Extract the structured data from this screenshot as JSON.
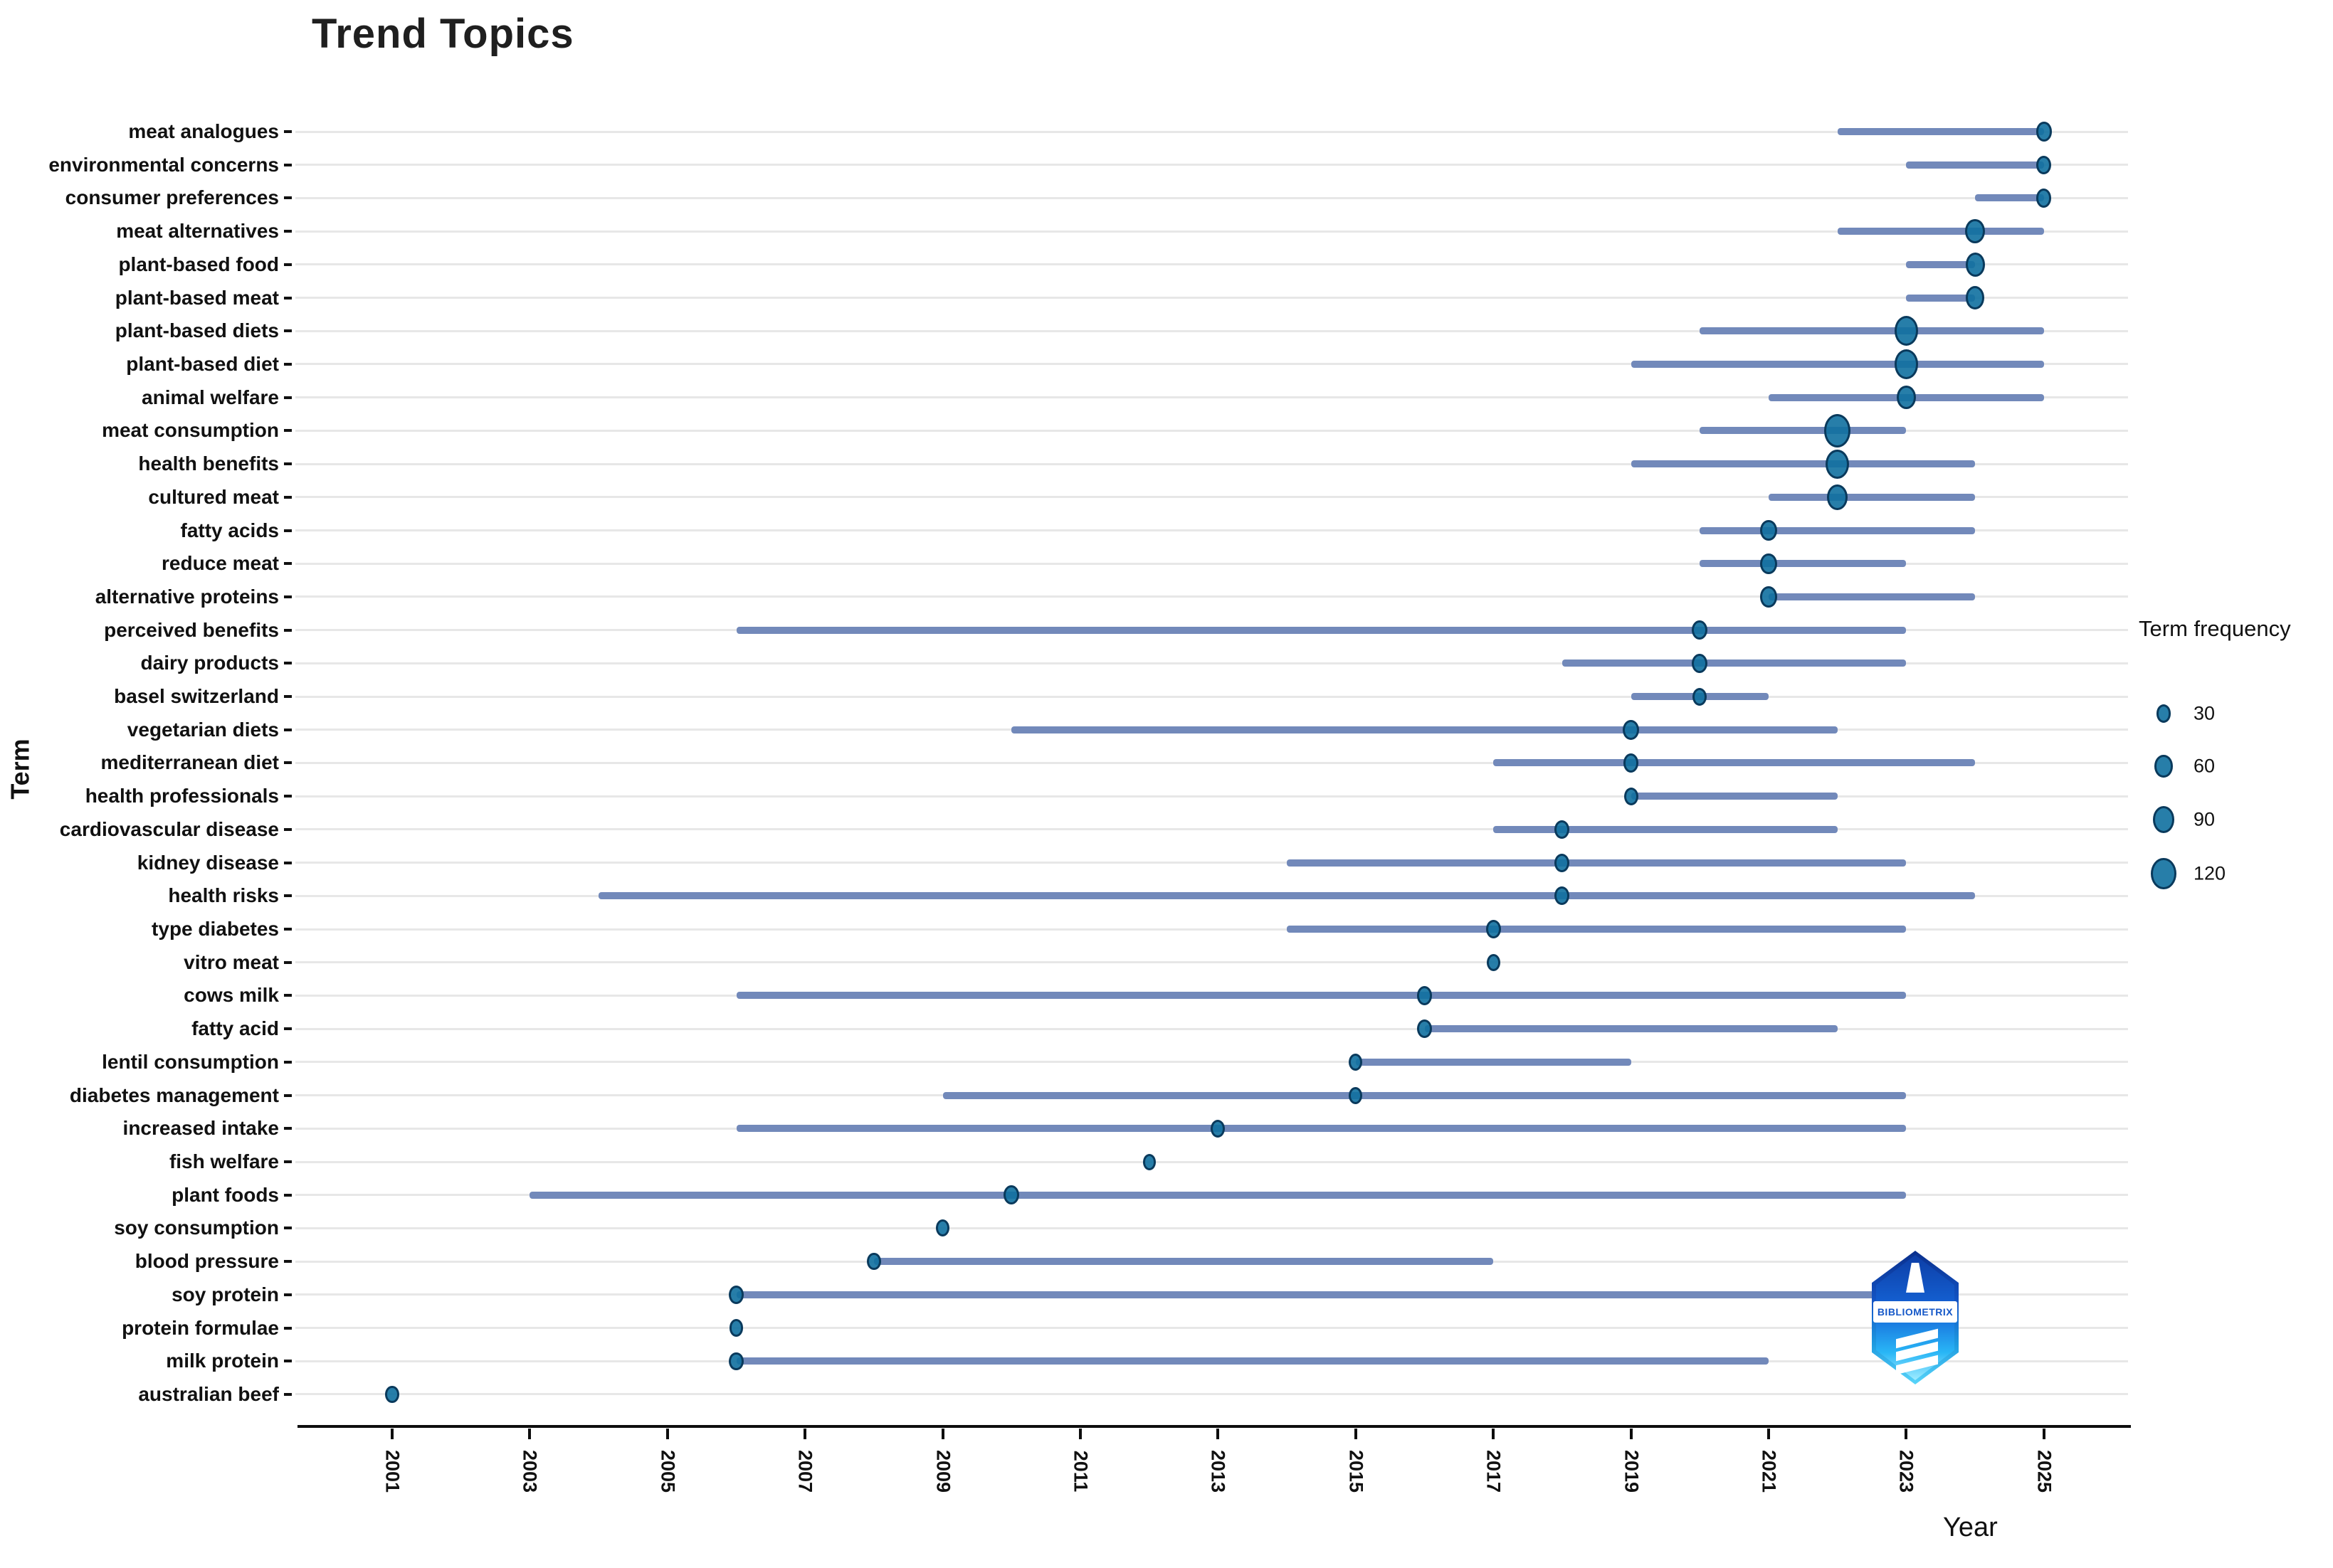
{
  "title": "Trend Topics",
  "x_axis": {
    "label": "Year",
    "min": 2001,
    "max": 2025,
    "ticks": [
      2001,
      2003,
      2005,
      2007,
      2009,
      2011,
      2013,
      2015,
      2017,
      2019,
      2021,
      2023,
      2025
    ]
  },
  "y_axis": {
    "label": "Term"
  },
  "legend": {
    "title": "Term frequency",
    "items": [
      30,
      60,
      90,
      120
    ]
  },
  "logo": {
    "text": "BIBLIOMETRIX"
  },
  "colors": {
    "bubble_fill": "#10709f",
    "bubble_stroke": "#0a3a5c",
    "range_line": "#7289ba",
    "gridline": "#e7e7e7",
    "axis": "#0d0d0d"
  },
  "chart_data": {
    "type": "scatter",
    "title": "Trend Topics",
    "xlabel": "Year",
    "ylabel": "Term",
    "xlim": [
      2001,
      2025
    ],
    "grid": "horizontal-only",
    "legend_position": "right",
    "series_note": "Each term has a Q1-Q3 year range line and a bubble at the median year sized by term frequency",
    "terms": [
      {
        "term": "meat analogues",
        "q1": 2022,
        "median": 2025,
        "q3": 2025,
        "freq": 40
      },
      {
        "term": "environmental concerns",
        "q1": 2023,
        "median": 2025,
        "q3": 2025,
        "freq": 35
      },
      {
        "term": "consumer preferences",
        "q1": 2024,
        "median": 2025,
        "q3": 2025,
        "freq": 35
      },
      {
        "term": "meat alternatives",
        "q1": 2022,
        "median": 2024,
        "q3": 2025,
        "freq": 75
      },
      {
        "term": "plant-based food",
        "q1": 2023,
        "median": 2024,
        "q3": 2024,
        "freq": 70
      },
      {
        "term": "plant-based meat",
        "q1": 2023,
        "median": 2024,
        "q3": 2024,
        "freq": 65
      },
      {
        "term": "plant-based diets",
        "q1": 2020,
        "median": 2023,
        "q3": 2025,
        "freq": 110
      },
      {
        "term": "plant-based diet",
        "q1": 2019,
        "median": 2023,
        "q3": 2025,
        "freq": 105
      },
      {
        "term": "animal welfare",
        "q1": 2021,
        "median": 2023,
        "q3": 2025,
        "freq": 70
      },
      {
        "term": "meat consumption",
        "q1": 2020,
        "median": 2022,
        "q3": 2023,
        "freq": 130
      },
      {
        "term": "health benefits",
        "q1": 2019,
        "median": 2022,
        "q3": 2024,
        "freq": 105
      },
      {
        "term": "cultured meat",
        "q1": 2021,
        "median": 2022,
        "q3": 2024,
        "freq": 80
      },
      {
        "term": "fatty acids",
        "q1": 2020,
        "median": 2021,
        "q3": 2024,
        "freq": 50
      },
      {
        "term": "reduce meat",
        "q1": 2020,
        "median": 2021,
        "q3": 2023,
        "freq": 50
      },
      {
        "term": "alternative proteins",
        "q1": 2021,
        "median": 2021,
        "q3": 2024,
        "freq": 50
      },
      {
        "term": "perceived benefits",
        "q1": 2006,
        "median": 2020,
        "q3": 2023,
        "freq": 40
      },
      {
        "term": "dairy products",
        "q1": 2018,
        "median": 2020,
        "q3": 2023,
        "freq": 40
      },
      {
        "term": "basel switzerland",
        "q1": 2019,
        "median": 2020,
        "q3": 2021,
        "freq": 30
      },
      {
        "term": "vegetarian diets",
        "q1": 2010,
        "median": 2019,
        "q3": 2022,
        "freq": 45
      },
      {
        "term": "mediterranean diet",
        "q1": 2017,
        "median": 2019,
        "q3": 2024,
        "freq": 35
      },
      {
        "term": "health professionals",
        "q1": 2019,
        "median": 2019,
        "q3": 2022,
        "freq": 30
      },
      {
        "term": "cardiovascular disease",
        "q1": 2017,
        "median": 2018,
        "q3": 2022,
        "freq": 35
      },
      {
        "term": "kidney disease",
        "q1": 2014,
        "median": 2018,
        "q3": 2023,
        "freq": 35
      },
      {
        "term": "health risks",
        "q1": 2004,
        "median": 2018,
        "q3": 2024,
        "freq": 35
      },
      {
        "term": "type diabetes",
        "q1": 2014,
        "median": 2017,
        "q3": 2023,
        "freq": 35
      },
      {
        "term": "vitro meat",
        "q1": 2017,
        "median": 2017,
        "q3": 2017,
        "freq": 25
      },
      {
        "term": "cows milk",
        "q1": 2006,
        "median": 2016,
        "q3": 2023,
        "freq": 40
      },
      {
        "term": "fatty acid",
        "q1": 2016,
        "median": 2016,
        "q3": 2022,
        "freq": 35
      },
      {
        "term": "lentil consumption",
        "q1": 2015,
        "median": 2015,
        "q3": 2019,
        "freq": 25
      },
      {
        "term": "diabetes management",
        "q1": 2009,
        "median": 2015,
        "q3": 2023,
        "freq": 25
      },
      {
        "term": "increased intake",
        "q1": 2006,
        "median": 2013,
        "q3": 2023,
        "freq": 30
      },
      {
        "term": "fish welfare",
        "q1": 2012,
        "median": 2012,
        "q3": 2012,
        "freq": 20
      },
      {
        "term": "plant foods",
        "q1": 2003,
        "median": 2010,
        "q3": 2023,
        "freq": 40
      },
      {
        "term": "soy consumption",
        "q1": 2009,
        "median": 2009,
        "q3": 2009,
        "freq": 25
      },
      {
        "term": "blood pressure",
        "q1": 2008,
        "median": 2008,
        "q3": 2017,
        "freq": 25
      },
      {
        "term": "soy protein",
        "q1": 2006,
        "median": 2006,
        "q3": 2023,
        "freq": 35
      },
      {
        "term": "protein formulae",
        "q1": 2006,
        "median": 2006,
        "q3": 2006,
        "freq": 28
      },
      {
        "term": "milk protein",
        "q1": 2006,
        "median": 2006,
        "q3": 2021,
        "freq": 30
      },
      {
        "term": "australian beef",
        "q1": 2001,
        "median": 2001,
        "q3": 2001,
        "freq": 25
      }
    ]
  }
}
